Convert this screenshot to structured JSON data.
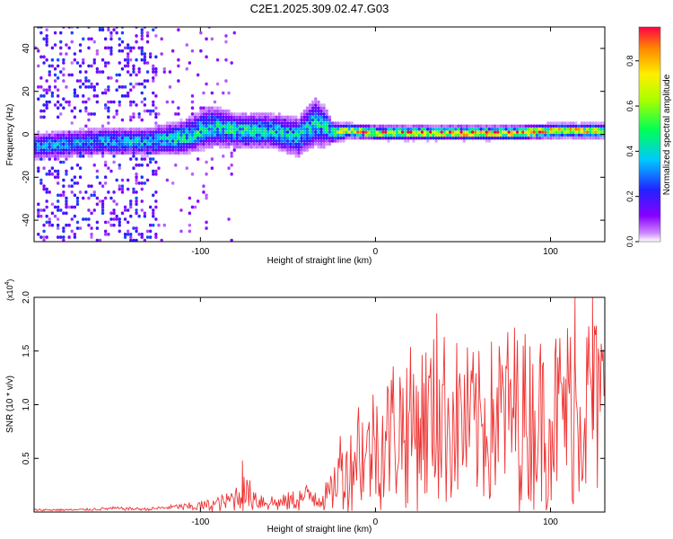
{
  "figure_title": "C2E1.2025.309.02.47.G03",
  "chart_data": [
    {
      "type": "heatmap",
      "title": "C2E1.2025.309.02.47.G03",
      "xlabel": "Height of straight line (km)",
      "ylabel": "Frequency (Hz)",
      "xlim": [
        -195,
        131
      ],
      "ylim": [
        -50,
        50
      ],
      "xticks": [
        -100,
        0,
        100
      ],
      "xtick_labels": [
        "-100",
        "0",
        "100"
      ],
      "yticks": [
        -40,
        -20,
        0,
        20,
        40
      ],
      "ytick_labels": [
        "-40",
        "-20",
        "0",
        "20",
        "40"
      ],
      "colorbar": {
        "label": "Normalized spectral amplitude",
        "range": [
          0,
          0.95
        ],
        "ticks": [
          0.0,
          0.2,
          0.4,
          0.6,
          0.8
        ],
        "tick_labels": [
          "0.0",
          "0.2",
          "0.4",
          "0.6",
          "0.8"
        ],
        "colormap": "rainbow (white-violet-blue-cyan-green-yellow-red)"
      },
      "ridge": {
        "description": "spectral ridge near 0 Hz",
        "x": [
          -190,
          -160,
          -130,
          -110,
          -95,
          -80,
          -60,
          -45,
          -35,
          -30,
          -25,
          -15,
          0,
          20,
          40,
          60,
          80,
          100,
          120,
          131
        ],
        "center_hz": [
          -6,
          -4,
          -4,
          -2,
          3,
          1,
          1,
          -2,
          5,
          3,
          0,
          1,
          0,
          0,
          0,
          0,
          0,
          1,
          1,
          1
        ],
        "half_width_hz": [
          4,
          4,
          4,
          5,
          6,
          5,
          5,
          6,
          7,
          6,
          3,
          2,
          2,
          2,
          2,
          2,
          2,
          2,
          2,
          2
        ],
        "peak_amplitude": [
          0.35,
          0.35,
          0.4,
          0.45,
          0.45,
          0.45,
          0.45,
          0.4,
          0.45,
          0.4,
          0.6,
          0.75,
          0.85,
          0.88,
          0.9,
          0.9,
          0.88,
          0.85,
          0.8,
          0.8
        ]
      },
      "scatter_region": {
        "x_range": [
          -195,
          -125
        ],
        "freq_range_hz": [
          -50,
          50
        ],
        "amplitude": 0.1
      }
    },
    {
      "type": "line",
      "title": "",
      "xlabel": "Height of straight line (km)",
      "ylabel": "SNR (10 * v/v)",
      "y_multiplier": "(x10^4)",
      "xlim": [
        -195,
        131
      ],
      "ylim": [
        0,
        2.0
      ],
      "xticks": [
        -100,
        0,
        100
      ],
      "xtick_labels": [
        "-100",
        "0",
        "100"
      ],
      "yticks": [
        0.5,
        1.0,
        1.5,
        2.0
      ],
      "ytick_labels": [
        "0.5",
        "1.0",
        "1.5",
        "2.0"
      ],
      "color": "#ee3333",
      "series": [
        {
          "name": "SNR",
          "x": [
            -195,
            -170,
            -150,
            -130,
            -110,
            -95,
            -85,
            -75,
            -65,
            -55,
            -45,
            -35,
            -30,
            -25,
            -20,
            -15,
            -10,
            -5,
            0,
            5,
            10,
            20,
            30,
            40,
            50,
            60,
            70,
            80,
            90,
            100,
            110,
            120,
            131
          ],
          "env": [
            0.03,
            0.03,
            0.05,
            0.04,
            0.08,
            0.12,
            0.18,
            0.35,
            0.2,
            0.15,
            0.22,
            0.3,
            0.25,
            0.35,
            0.8,
            0.7,
            1.2,
            0.95,
            1.3,
            1.2,
            1.5,
            1.55,
            1.65,
            1.7,
            1.6,
            1.5,
            1.7,
            1.8,
            1.65,
            1.7,
            1.85,
            1.95,
            1.8
          ]
        }
      ],
      "peak_annotations": [
        {
          "x": -76,
          "value": 0.48
        },
        {
          "x": 35,
          "value": 1.85
        },
        {
          "x": 114,
          "value": 2.0
        },
        {
          "x": 124,
          "value": 2.0
        }
      ]
    }
  ]
}
